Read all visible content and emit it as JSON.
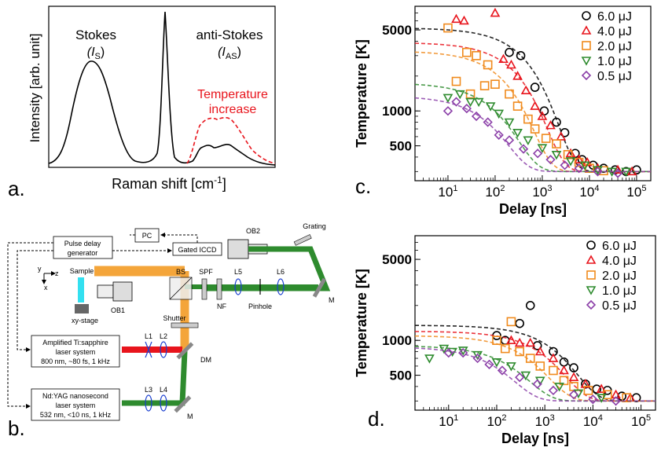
{
  "panel_labels": {
    "a": "a.",
    "b": "b.",
    "c": "c.",
    "d": "d."
  },
  "spectrum": {
    "ylabel": "Intensity [arb. unit]",
    "xlabel_main": "Raman shift [cm",
    "xlabel_sup": "-1",
    "xlabel_end": "]",
    "stokes_label": "Stokes",
    "stokes_sym": "(I",
    "stokes_sub": "S",
    "stokes_end": ")",
    "anti_label": "anti-Stokes",
    "anti_sym": "(I",
    "anti_sub": "AS",
    "anti_end": ")",
    "temp_label_1": "Temperature",
    "temp_label_2": "increase",
    "colors": {
      "solid": "#000000",
      "dashed": "#e8141c"
    }
  },
  "setup": {
    "pc": "PC",
    "pulse_delay_1": "Pulse delay",
    "pulse_delay_2": "generator",
    "iccd": "Gated ICCD",
    "ob2": "OB2",
    "grating": "Grating",
    "axis_y": "y",
    "axis_z": "z",
    "axis_x": "x",
    "sample": "Sample",
    "ob1": "OB1",
    "bs": "BS",
    "spf": "SPF",
    "l5": "L5",
    "l6": "L6",
    "nf": "NF",
    "pinhole": "Pinhole",
    "m_top": "M",
    "xy_stage": "xy-stage",
    "shutter": "Shutter",
    "ti_1": "Amplified Ti:sapphire",
    "ti_2": "laser system",
    "ti_3": "800 nm, ~80 fs, 1 kHz",
    "l1": "L1",
    "l2": "L2",
    "dm": "DM",
    "nd_1": "Nd:YAG nanosecond",
    "nd_2": "laser system",
    "nd_3": "532 nm, <10 ns, 1 kHz",
    "l3": "L3",
    "l4": "L4",
    "m_bottom": "M",
    "colors": {
      "orange": "#f4a53a",
      "green": "#2e8b2e",
      "red": "#e8141c",
      "cyan": "#33e0f0"
    }
  },
  "chart_data": [
    {
      "type": "scatter",
      "panel": "c",
      "xlabel": "Delay [ns]",
      "ylabel": "Temperature [K]",
      "x_scale": "log",
      "y_scale": "log",
      "xlim": [
        2,
        200000
      ],
      "ylim": [
        250,
        8000
      ],
      "x_ticks": [
        {
          "v": 10,
          "b": "10",
          "e": "1"
        },
        {
          "v": 100,
          "b": "10",
          "e": "2"
        },
        {
          "v": 1000,
          "b": "10",
          "e": "3"
        },
        {
          "v": 10000,
          "b": "10",
          "e": "4"
        },
        {
          "v": 100000,
          "b": "10",
          "e": "5"
        }
      ],
      "y_ticks": [
        {
          "v": 500,
          "t": "500"
        },
        {
          "v": 1000,
          "t": "1000"
        },
        {
          "v": 5000,
          "t": "5000"
        }
      ],
      "legend_position": "top-right",
      "series": [
        {
          "name": "6.0 μJ",
          "marker": "circle",
          "color": "#000000",
          "fit": {
            "t0": 5200,
            "tau": 700
          },
          "points": [
            [
              200,
              3200
            ],
            [
              350,
              3000
            ],
            [
              700,
              1600
            ],
            [
              1100,
              1000
            ],
            [
              2000,
              800
            ],
            [
              3000,
              650
            ],
            [
              5000,
              430
            ],
            [
              7000,
              380
            ],
            [
              12000,
              340
            ],
            [
              20000,
              320
            ],
            [
              35000,
              310
            ],
            [
              60000,
              300
            ],
            [
              100000,
              310
            ]
          ]
        },
        {
          "name": "4.0 μJ",
          "marker": "triangle-up",
          "color": "#e8141c",
          "fit": {
            "t0": 3900,
            "tau": 450
          },
          "points": [
            [
              15,
              6200
            ],
            [
              22,
              6000
            ],
            [
              100,
              7000
            ],
            [
              150,
              2800
            ],
            [
              220,
              2500
            ],
            [
              300,
              2000
            ],
            [
              450,
              1500
            ],
            [
              700,
              1100
            ],
            [
              1000,
              900
            ],
            [
              1500,
              750
            ],
            [
              2500,
              600
            ],
            [
              4000,
              430
            ],
            [
              6000,
              380
            ],
            [
              9000,
              360
            ],
            [
              15000,
              320
            ],
            [
              40000,
              310
            ],
            [
              80000,
              300
            ]
          ]
        },
        {
          "name": "2.0 μJ",
          "marker": "square",
          "color": "#f08a1c",
          "fit": {
            "t0": 3300,
            "tau": 250
          },
          "points": [
            [
              10,
              5200
            ],
            [
              25,
              3200
            ],
            [
              40,
              3000
            ],
            [
              70,
              2500
            ],
            [
              15,
              1800
            ],
            [
              30,
              1400
            ],
            [
              60,
              1650
            ],
            [
              100,
              1700
            ],
            [
              200,
              1400
            ],
            [
              300,
              1100
            ],
            [
              500,
              850
            ],
            [
              700,
              700
            ],
            [
              1200,
              580
            ],
            [
              2000,
              520
            ],
            [
              3500,
              420
            ],
            [
              6000,
              360
            ],
            [
              10000,
              320
            ],
            [
              20000,
              305
            ]
          ]
        },
        {
          "name": "1.0 μJ",
          "marker": "triangle-down",
          "color": "#2e8b2e",
          "fit": {
            "t0": 1750,
            "tau": 150
          },
          "points": [
            [
              10,
              1300
            ],
            [
              18,
              1400
            ],
            [
              30,
              1200
            ],
            [
              45,
              1200
            ],
            [
              80,
              1100
            ],
            [
              120,
              950
            ],
            [
              200,
              800
            ],
            [
              300,
              650
            ],
            [
              500,
              560
            ],
            [
              1000,
              480
            ],
            [
              2000,
              420
            ],
            [
              4000,
              370
            ],
            [
              8000,
              340
            ],
            [
              15000,
              310
            ],
            [
              30000,
              300
            ],
            [
              60000,
              300
            ]
          ]
        },
        {
          "name": "0.5 μJ",
          "marker": "diamond",
          "color": "#8b3fa8",
          "fit": {
            "t0": 1350,
            "tau": 100
          },
          "points": [
            [
              10,
              1000
            ],
            [
              15,
              1200
            ],
            [
              25,
              1050
            ],
            [
              40,
              900
            ],
            [
              70,
              800
            ],
            [
              120,
              620
            ],
            [
              200,
              560
            ],
            [
              400,
              470
            ],
            [
              800,
              430
            ],
            [
              1500,
              380
            ],
            [
              3000,
              340
            ],
            [
              6000,
              320
            ],
            [
              15000,
              300
            ],
            [
              40000,
              290
            ]
          ]
        }
      ]
    },
    {
      "type": "scatter",
      "panel": "d",
      "xlabel": "Delay [ns]",
      "ylabel": "Temperature [K]",
      "x_scale": "log",
      "y_scale": "log",
      "xlim": [
        2,
        200000
      ],
      "ylim": [
        250,
        8000
      ],
      "x_ticks": [
        {
          "v": 10,
          "b": "10",
          "e": "1"
        },
        {
          "v": 100,
          "b": "10",
          "e": "2"
        },
        {
          "v": 1000,
          "b": "10",
          "e": "3"
        },
        {
          "v": 10000,
          "b": "10",
          "e": "4"
        },
        {
          "v": 100000,
          "b": "10",
          "e": "5"
        }
      ],
      "y_ticks": [
        {
          "v": 500,
          "t": "500"
        },
        {
          "v": 1000,
          "t": "1000"
        },
        {
          "v": 5000,
          "t": "5000"
        }
      ],
      "legend_position": "top-right",
      "series": [
        {
          "name": "6.0 μJ",
          "marker": "circle",
          "color": "#000000",
          "fit": {
            "t0": 1350,
            "tau": 2500
          },
          "points": [
            [
              300,
              1400
            ],
            [
              500,
              2000
            ],
            [
              100,
              1100
            ],
            [
              150,
              1000
            ],
            [
              700,
              900
            ],
            [
              1500,
              800
            ],
            [
              2500,
              650
            ],
            [
              4000,
              580
            ],
            [
              7000,
              420
            ],
            [
              12000,
              380
            ],
            [
              20000,
              370
            ],
            [
              40000,
              330
            ],
            [
              80000,
              320
            ]
          ]
        },
        {
          "name": "4.0 μJ",
          "marker": "triangle-up",
          "color": "#e8141c",
          "fit": {
            "t0": 1200,
            "tau": 1500
          },
          "points": [
            [
              200,
              1000
            ],
            [
              300,
              950
            ],
            [
              500,
              950
            ],
            [
              800,
              800
            ],
            [
              1500,
              700
            ],
            [
              2500,
              550
            ],
            [
              4000,
              480
            ],
            [
              7000,
              420
            ],
            [
              15000,
              380
            ],
            [
              30000,
              340
            ],
            [
              60000,
              320
            ]
          ]
        },
        {
          "name": "2.0 μJ",
          "marker": "square",
          "color": "#f08a1c",
          "fit": {
            "t0": 1100,
            "tau": 700
          },
          "points": [
            [
              200,
              1450
            ],
            [
              100,
              1000
            ],
            [
              150,
              850
            ],
            [
              300,
              800
            ],
            [
              500,
              700
            ],
            [
              800,
              600
            ],
            [
              1500,
              550
            ],
            [
              2500,
              450
            ],
            [
              4000,
              400
            ],
            [
              8000,
              370
            ],
            [
              20000,
              340
            ],
            [
              50000,
              320
            ]
          ]
        },
        {
          "name": "1.0 μJ",
          "marker": "triangle-down",
          "color": "#2e8b2e",
          "fit": {
            "t0": 900,
            "tau": 300
          },
          "points": [
            [
              4,
              700
            ],
            [
              8,
              850
            ],
            [
              12,
              800
            ],
            [
              20,
              820
            ],
            [
              40,
              750
            ],
            [
              100,
              650
            ],
            [
              200,
              600
            ],
            [
              400,
              500
            ],
            [
              800,
              450
            ],
            [
              2000,
              400
            ],
            [
              5000,
              350
            ],
            [
              15000,
              320
            ]
          ]
        },
        {
          "name": "0.5 μJ",
          "marker": "diamond",
          "color": "#8b3fa8",
          "fit": {
            "t0": 880,
            "tau": 150
          },
          "points": [
            [
              10,
              780
            ],
            [
              20,
              780
            ],
            [
              40,
              700
            ],
            [
              70,
              620
            ],
            [
              130,
              550
            ],
            [
              300,
              480
            ],
            [
              700,
              420
            ],
            [
              1500,
              370
            ],
            [
              4000,
              340
            ],
            [
              10000,
              310
            ],
            [
              30000,
              300
            ]
          ]
        }
      ]
    }
  ]
}
